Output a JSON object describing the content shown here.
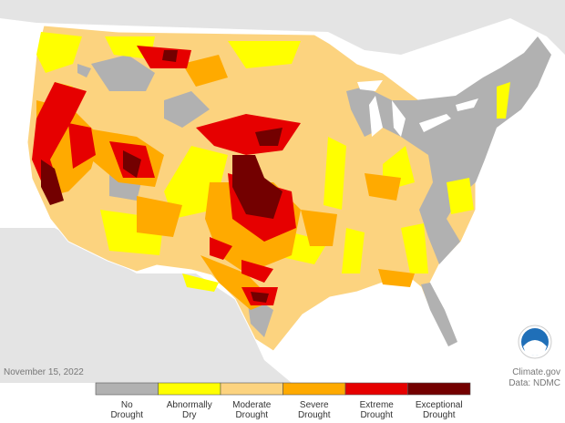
{
  "date": "November 15, 2022",
  "credit": "Climate.gov",
  "source": "Data: NDMC",
  "legend": [
    {
      "lines": [
        "No",
        "Drought"
      ],
      "color": "#b1b1b1"
    },
    {
      "lines": [
        "Abnormally",
        "Dry"
      ],
      "color": "#ffff00"
    },
    {
      "lines": [
        "Moderate",
        "Drought"
      ],
      "color": "#fcd37f"
    },
    {
      "lines": [
        "Severe",
        "Drought"
      ],
      "color": "#ffaa00"
    },
    {
      "lines": [
        "Extreme",
        "Drought"
      ],
      "color": "#e60000"
    },
    {
      "lines": [
        "Exceptional",
        "Drought"
      ],
      "color": "#730000"
    }
  ]
}
